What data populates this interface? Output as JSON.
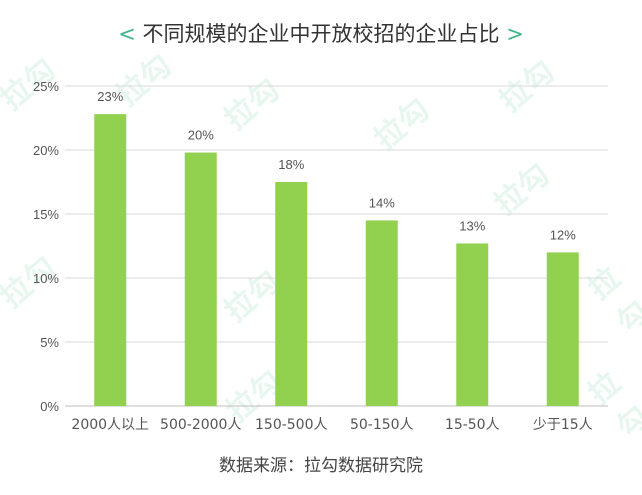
{
  "title": {
    "left_mark": "<",
    "text": "不同规模的企业中开放校招的企业占比",
    "right_mark": ">"
  },
  "source": "数据来源：拉勾数据研究院",
  "watermark": "拉勾",
  "colors": {
    "bar": "#92d050",
    "grid": "#d9d9d9",
    "accent": "#3fb58a",
    "text": "#555555"
  },
  "chart_data": {
    "type": "bar",
    "categories": [
      "2000人以上",
      "500-2000人",
      "150-500人",
      "50-150人",
      "15-50人",
      "少于15人"
    ],
    "values": [
      23,
      20,
      18,
      14,
      13,
      12
    ],
    "value_labels": [
      "23%",
      "20%",
      "18%",
      "14%",
      "13%",
      "12%"
    ],
    "plotted_values": [
      22.8,
      19.8,
      17.5,
      14.5,
      12.7,
      12.0
    ],
    "title": "不同规模的企业中开放校招的企业占比",
    "ylim": [
      0,
      25
    ],
    "yticks": [
      0,
      5,
      10,
      15,
      20,
      25
    ],
    "ytick_labels": [
      "0%",
      "5%",
      "10%",
      "15%",
      "20%",
      "25%"
    ],
    "grid": true,
    "legend": "none"
  }
}
